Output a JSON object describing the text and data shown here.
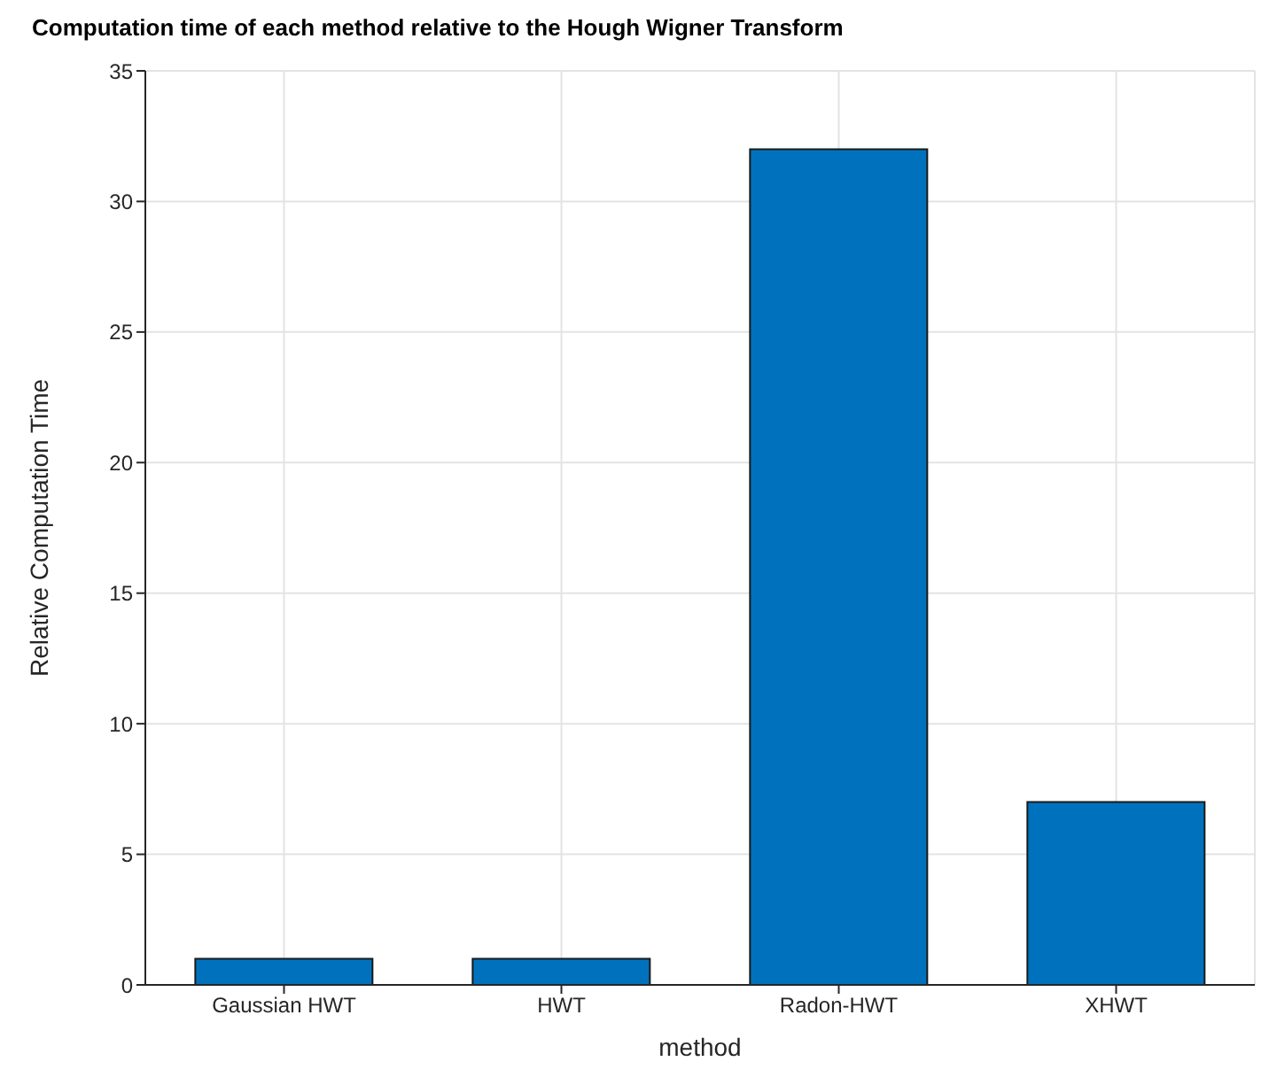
{
  "chart_data": {
    "type": "bar",
    "title": "Computation time of each method relative to the Hough Wigner Transform",
    "xlabel": "method",
    "ylabel": "Relative Computation Time",
    "categories": [
      "Gaussian HWT",
      "HWT",
      "Radon-HWT",
      "XHWT"
    ],
    "values": [
      1,
      1,
      32,
      7
    ],
    "color": "#0072bd",
    "ylim": [
      0,
      35
    ],
    "yticks": [
      0,
      5,
      10,
      15,
      20,
      25,
      30,
      35
    ],
    "grid": true
  }
}
